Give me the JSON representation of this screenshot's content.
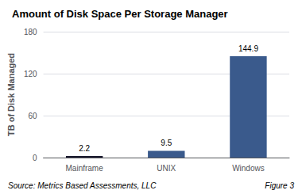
{
  "chart_data": {
    "type": "bar",
    "title": "Amount of Disk Space Per Storage Manager",
    "categories": [
      "Mainframe",
      "UNIX",
      "Windows"
    ],
    "values": [
      2.2,
      9.5,
      144.9
    ],
    "colors": [
      "#1a1a2e",
      "#3a5a8c",
      "#3a5a8c"
    ],
    "ylabel": "TB of Disk Managed",
    "ylim": [
      0,
      180
    ],
    "yticks": [
      0,
      60,
      120,
      180
    ],
    "grid": true,
    "data_labels": true,
    "annotations": [
      "Source: Metrics Based Assessments, LLC",
      "Figure 3"
    ]
  }
}
